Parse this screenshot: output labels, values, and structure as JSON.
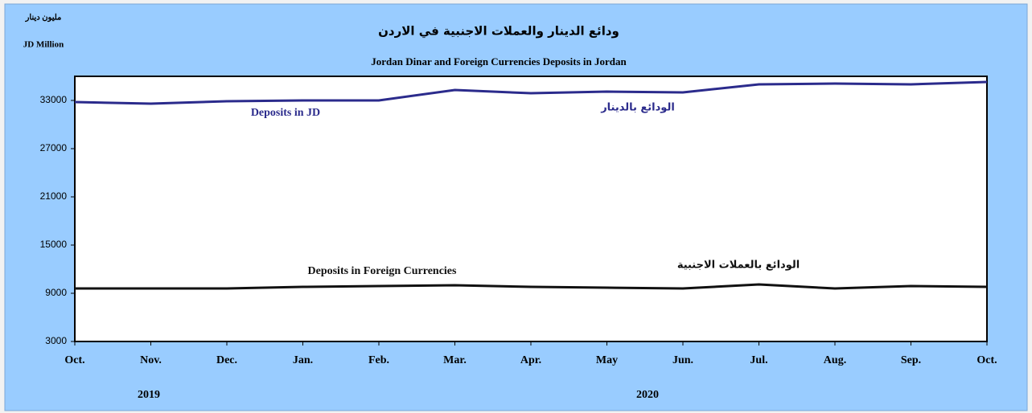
{
  "chart_data": {
    "type": "line",
    "title": "ودائع الدينار والعملات الاجنبية في الاردن",
    "subtitle": "Jordan Dinar and Foreign Currencies Deposits in Jordan",
    "unit_labels": [
      "مليون دينار",
      "JD Million"
    ],
    "categories": [
      "Oct.",
      "Nov.",
      "Dec.",
      "Jan.",
      "Feb.",
      "Mar.",
      "Apr.",
      "May",
      "Jun.",
      "Jul.",
      "Aug.",
      "Sep.",
      "Oct."
    ],
    "year_labels": [
      "2019",
      "2020"
    ],
    "series": [
      {
        "name": "Deposits in JD",
        "label_ar": "الودائع بالدينار",
        "color": "#2b2b8c",
        "values": [
          32800,
          32600,
          32900,
          33000,
          33000,
          34300,
          33900,
          34100,
          34000,
          35000,
          35100,
          35000,
          35300
        ]
      },
      {
        "name": "Deposits in Foreign Currencies",
        "label_ar": "الودائع بالعملات الاجنبية",
        "color": "#111111",
        "values": [
          9600,
          9600,
          9600,
          9800,
          9900,
          10000,
          9800,
          9700,
          9600,
          10100,
          9600,
          9900,
          9800
        ]
      }
    ],
    "ylim": [
      3000,
      36000
    ],
    "yticks": [
      3000,
      9000,
      15000,
      21000,
      27000,
      33000
    ]
  }
}
